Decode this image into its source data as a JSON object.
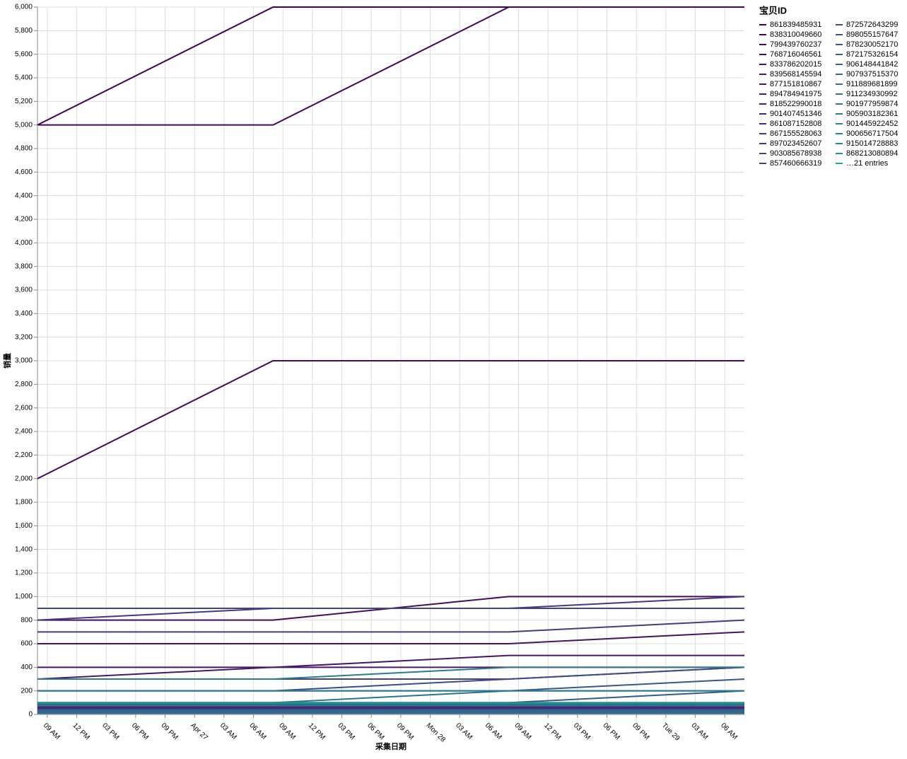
{
  "chart_data": {
    "type": "line",
    "x_label": "采集日期",
    "y_label": "销量",
    "legend_title": "宝贝ID",
    "legend_more": "…21 entries",
    "x": [
      "Apr 26 08:00",
      "Apr 27 08:00",
      "Apr 28 08:00",
      "Apr 29 08:00"
    ],
    "xlim": [
      "Apr 26 08:00",
      "Apr 29 08:00"
    ],
    "xticks": [
      {
        "value": "Apr 26 09:00",
        "label": "09 AM"
      },
      {
        "value": "Apr 26 12:00",
        "label": "12 PM"
      },
      {
        "value": "Apr 26 15:00",
        "label": "03 PM"
      },
      {
        "value": "Apr 26 18:00",
        "label": "06 PM"
      },
      {
        "value": "Apr 26 21:00",
        "label": "09 PM"
      },
      {
        "value": "Apr 27 00:00",
        "label": "Apr 27"
      },
      {
        "value": "Apr 27 03:00",
        "label": "03 AM"
      },
      {
        "value": "Apr 27 06:00",
        "label": "06 AM"
      },
      {
        "value": "Apr 27 09:00",
        "label": "09 AM"
      },
      {
        "value": "Apr 27 12:00",
        "label": "12 PM"
      },
      {
        "value": "Apr 27 15:00",
        "label": "03 PM"
      },
      {
        "value": "Apr 27 18:00",
        "label": "06 PM"
      },
      {
        "value": "Apr 27 21:00",
        "label": "09 PM"
      },
      {
        "value": "Apr 28 00:00",
        "label": "Mon 28"
      },
      {
        "value": "Apr 28 03:00",
        "label": "03 AM"
      },
      {
        "value": "Apr 28 06:00",
        "label": "06 AM"
      },
      {
        "value": "Apr 28 09:00",
        "label": "09 AM"
      },
      {
        "value": "Apr 28 12:00",
        "label": "12 PM"
      },
      {
        "value": "Apr 28 15:00",
        "label": "03 PM"
      },
      {
        "value": "Apr 28 18:00",
        "label": "06 PM"
      },
      {
        "value": "Apr 28 21:00",
        "label": "09 PM"
      },
      {
        "value": "Apr 29 00:00",
        "label": "Tue 29"
      },
      {
        "value": "Apr 29 03:00",
        "label": "03 AM"
      },
      {
        "value": "Apr 29 06:00",
        "label": "06 AM"
      }
    ],
    "ylim": [
      0,
      6000
    ],
    "yticks": [
      0,
      200,
      400,
      600,
      800,
      {
        "value": 1000,
        "label": "1,000"
      },
      {
        "value": 1200,
        "label": "1,200"
      },
      {
        "value": 1400,
        "label": "1,400"
      },
      {
        "value": 1600,
        "label": "1,600"
      },
      {
        "value": 1800,
        "label": "1,800"
      },
      {
        "value": 2000,
        "label": "2,000"
      },
      {
        "value": 2200,
        "label": "2,200"
      },
      {
        "value": 2400,
        "label": "2,400"
      },
      {
        "value": 2600,
        "label": "2,600"
      },
      {
        "value": 2800,
        "label": "2,800"
      },
      {
        "value": 3000,
        "label": "3,000"
      },
      {
        "value": 3200,
        "label": "3,200"
      },
      {
        "value": 3400,
        "label": "3,400"
      },
      {
        "value": 3600,
        "label": "3,600"
      },
      {
        "value": 3800,
        "label": "3,800"
      },
      {
        "value": 4000,
        "label": "4,000"
      },
      {
        "value": 4200,
        "label": "4,200"
      },
      {
        "value": 4400,
        "label": "4,400"
      },
      {
        "value": 4600,
        "label": "4,600"
      },
      {
        "value": 4800,
        "label": "4,800"
      },
      {
        "value": 5000,
        "label": "5,000"
      },
      {
        "value": 5200,
        "label": "5,200"
      },
      {
        "value": 5400,
        "label": "5,400"
      },
      {
        "value": 5600,
        "label": "5,600"
      },
      {
        "value": 5800,
        "label": "5,800"
      },
      {
        "value": 6000,
        "label": "6,000"
      }
    ],
    "grid": true,
    "series": [
      {
        "name": "861839485931",
        "color": "#440154",
        "values": [
          5000,
          6000,
          6000,
          6000
        ]
      },
      {
        "name": "838310049660",
        "color": "#450559",
        "values": [
          5000,
          5000,
          6000,
          6000
        ]
      },
      {
        "name": "799439760237",
        "color": "#46085c",
        "values": [
          2000,
          3000,
          3000,
          3000
        ]
      },
      {
        "name": "768716046561",
        "color": "#460b5e",
        "values": [
          800,
          800,
          1000,
          1000
        ]
      },
      {
        "name": "833786202015",
        "color": "#471063",
        "values": [
          600,
          600,
          600,
          700
        ]
      },
      {
        "name": "839568145594",
        "color": "#481467",
        "values": [
          400,
          400,
          500,
          500
        ]
      },
      {
        "name": "877151810867",
        "color": "#481769",
        "values": [
          300,
          400,
          400,
          400
        ]
      },
      {
        "name": "894784941975",
        "color": "#481b6d",
        "values": [
          80,
          80,
          80,
          80
        ]
      },
      {
        "name": "818522990018",
        "color": "#481f70",
        "values": [
          70,
          70,
          70,
          70
        ]
      },
      {
        "name": "901407451346",
        "color": "#482374",
        "values": [
          60,
          60,
          60,
          60
        ]
      },
      {
        "name": "861087152808",
        "color": "#472777",
        "values": [
          50,
          50,
          50,
          50
        ]
      },
      {
        "name": "867155528063",
        "color": "#453781",
        "values": [
          800,
          900,
          900,
          1000
        ]
      },
      {
        "name": "897023452607",
        "color": "#443b84",
        "values": [
          700,
          700,
          700,
          800
        ]
      },
      {
        "name": "903085678938",
        "color": "#423f85",
        "values": [
          300,
          300,
          300,
          400
        ]
      },
      {
        "name": "857460666319",
        "color": "#404588",
        "values": [
          900,
          900,
          900,
          900
        ]
      },
      {
        "name": "872572643299",
        "color": "#3d4d8a",
        "values": [
          200,
          200,
          300,
          400
        ]
      },
      {
        "name": "898055157647",
        "color": "#3a548c",
        "values": [
          200,
          200,
          200,
          300
        ]
      },
      {
        "name": "878230052170",
        "color": "#38588c",
        "values": [
          100,
          100,
          100,
          200
        ]
      },
      {
        "name": "872175326154",
        "color": "#355f8d",
        "values": [
          40,
          40,
          40,
          40
        ]
      },
      {
        "name": "906148441842",
        "color": "#33638d",
        "values": [
          30,
          30,
          30,
          30
        ]
      },
      {
        "name": "907937515370",
        "color": "#31688e",
        "values": [
          20,
          20,
          20,
          20
        ]
      },
      {
        "name": "911889681899",
        "color": "#2e6e8e",
        "values": [
          10,
          10,
          10,
          10
        ]
      },
      {
        "name": "911234930992",
        "color": "#2c728e",
        "values": [
          100,
          100,
          200,
          200
        ]
      },
      {
        "name": "901977959874",
        "color": "#2a788e",
        "values": [
          200,
          200,
          200,
          200
        ]
      },
      {
        "name": "905903182361",
        "color": "#287c8e",
        "values": [
          300,
          300,
          400,
          400
        ]
      },
      {
        "name": "901445922452",
        "color": "#26828e",
        "values": [
          90,
          90,
          90,
          90
        ]
      },
      {
        "name": "900656717504",
        "color": "#24868e",
        "values": [
          100,
          100,
          100,
          100
        ]
      },
      {
        "name": "915014728883",
        "color": "#228b8d",
        "values": [
          75,
          75,
          75,
          75
        ]
      },
      {
        "name": "868213080894",
        "color": "#21918c",
        "values": [
          100,
          100,
          100,
          100
        ]
      }
    ]
  }
}
